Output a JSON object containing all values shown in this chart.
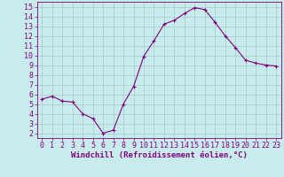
{
  "x": [
    0,
    1,
    2,
    3,
    4,
    5,
    6,
    7,
    8,
    9,
    10,
    11,
    12,
    13,
    14,
    15,
    16,
    17,
    18,
    19,
    20,
    21,
    22,
    23
  ],
  "y": [
    5.5,
    5.8,
    5.3,
    5.2,
    4.0,
    3.5,
    2.0,
    2.3,
    5.0,
    6.8,
    9.9,
    11.5,
    13.2,
    13.6,
    14.3,
    14.9,
    14.7,
    13.4,
    12.0,
    10.8,
    9.5,
    9.2,
    9.0,
    8.9
  ],
  "line_color": "#800080",
  "marker": "+",
  "marker_size": 3,
  "xlabel": "Windchill (Refroidissement éolien,°C)",
  "ylabel_ticks": [
    2,
    3,
    4,
    5,
    6,
    7,
    8,
    9,
    10,
    11,
    12,
    13,
    14,
    15
  ],
  "xlim": [
    -0.5,
    23.5
  ],
  "ylim": [
    1.5,
    15.5
  ],
  "bg_color": "#c8ecec",
  "grid_color": "#a0cccc",
  "label_color": "#800080",
  "tick_color": "#800080",
  "spine_color": "#800080",
  "xlabel_fontsize": 6.5,
  "tick_fontsize": 6
}
